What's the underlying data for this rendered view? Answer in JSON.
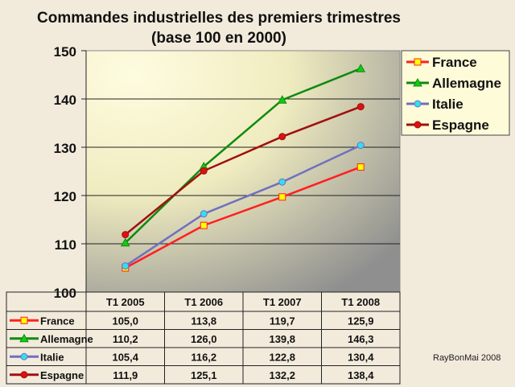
{
  "chart_data": {
    "type": "line",
    "title": "Commandes industrielles des premiers trimestres",
    "subtitle": "(base 100 en 2000)",
    "categories": [
      "T1 2005",
      "T1 2006",
      "T1 2007",
      "T1 2008"
    ],
    "ylim": [
      100,
      150
    ],
    "yticks": [
      100,
      110,
      120,
      130,
      140,
      150
    ],
    "grid": true,
    "legend_position": "top-right",
    "series": [
      {
        "name": "France",
        "values": [
          105.0,
          113.8,
          119.7,
          125.9
        ],
        "labels": [
          "105,0",
          "113,8",
          "119,7",
          "125,9"
        ],
        "color": "#ff2020",
        "marker": "square",
        "marker_fill": "#ffff00"
      },
      {
        "name": "Allemagne",
        "values": [
          110.2,
          126.0,
          139.8,
          146.3
        ],
        "labels": [
          "110,2",
          "126,0",
          "139,8",
          "146,3"
        ],
        "color": "#108a10",
        "marker": "triangle",
        "marker_fill": "#10cc10"
      },
      {
        "name": "Italie",
        "values": [
          105.4,
          116.2,
          122.8,
          130.4
        ],
        "labels": [
          "105,4",
          "116,2",
          "122,8",
          "130,4"
        ],
        "color": "#7070c0",
        "marker": "circle",
        "marker_fill": "#30e0f0"
      },
      {
        "name": "Espagne",
        "values": [
          111.9,
          125.1,
          132.2,
          138.4
        ],
        "labels": [
          "111,9",
          "125,1",
          "132,2",
          "138,4"
        ],
        "color": "#a01010",
        "marker": "circle",
        "marker_fill": "#e01010"
      }
    ]
  },
  "credit": "RayBonMai 2008"
}
